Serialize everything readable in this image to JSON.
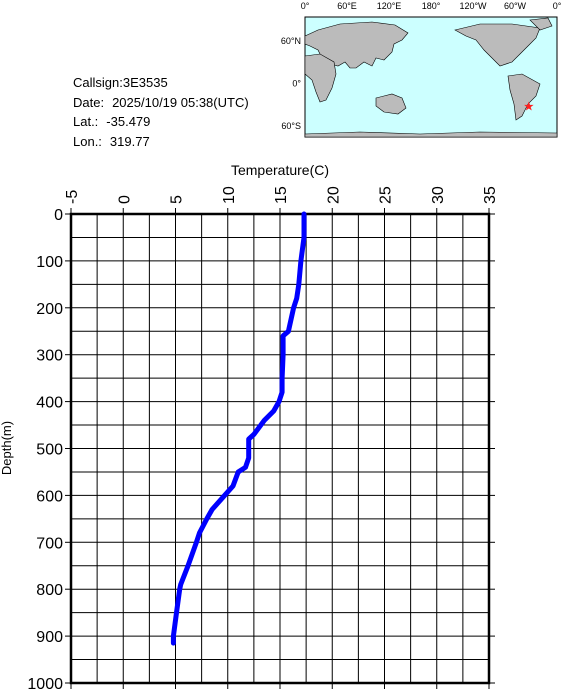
{
  "chart_data": {
    "type": "line",
    "xlabel": "Temperature(C)",
    "ylabel": "Depth(m)",
    "x": [
      17.3,
      17.3,
      17.0,
      16.8,
      16.6,
      16.3,
      15.8,
      15.3,
      15.3,
      15.2,
      15.2,
      14.9,
      14.4,
      13.5,
      12.5,
      12.0,
      12.0,
      11.7,
      11.0,
      10.5,
      9.7,
      8.5,
      8.0,
      7.3,
      7.0,
      6.2,
      5.5,
      5.4,
      5.1,
      4.8,
      4.8
    ],
    "series": [
      {
        "name": "Temperature",
        "color": "#0000ff",
        "values": [
          0,
          50,
          100,
          150,
          180,
          200,
          250,
          260,
          300,
          350,
          380,
          400,
          420,
          440,
          470,
          480,
          520,
          540,
          550,
          580,
          600,
          630,
          650,
          680,
          700,
          750,
          790,
          800,
          850,
          900,
          915
        ]
      }
    ],
    "xlim": [
      -5,
      35
    ],
    "xticks": [
      -5,
      0,
      5,
      10,
      15,
      20,
      25,
      30,
      35
    ],
    "ylim": [
      0,
      1000
    ],
    "yticks": [
      0,
      100,
      200,
      300,
      400,
      500,
      600,
      700,
      800,
      900,
      1000
    ],
    "y_inverted": true,
    "grid": true
  },
  "info": {
    "callsign": "Callsign:3E3535",
    "date_label": "Date:",
    "date": "2025/10/19 05:38(UTC)",
    "lat_label": "Lat.:",
    "lat": -35.479,
    "lon_label": "Lon.:",
    "lon": 319.77
  },
  "map": {
    "lon_labels": [
      "0°",
      "60°E",
      "120°E",
      "180°",
      "120°W",
      "60°W",
      "0°"
    ],
    "lat_labels": [
      "60°N",
      "0°",
      "60°S"
    ],
    "marker_color": "#ff2020"
  }
}
